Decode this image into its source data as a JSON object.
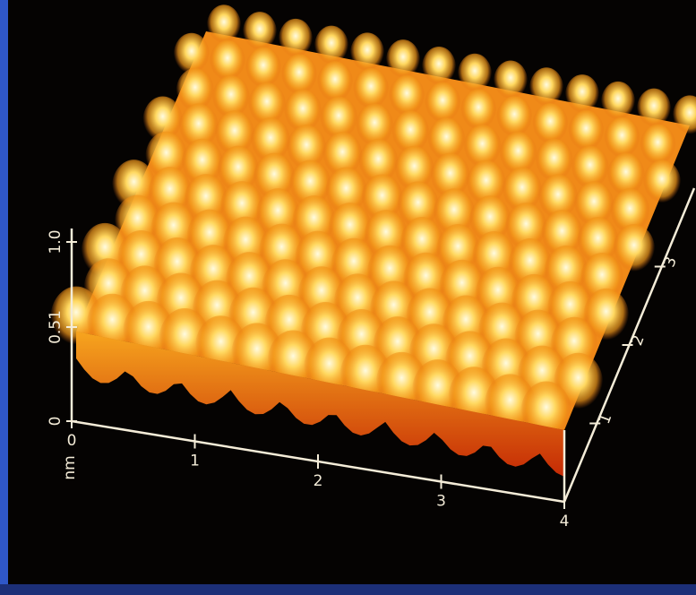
{
  "z_axis": {
    "ticks": [
      "0",
      "0.51",
      "1.0"
    ]
  },
  "x_axis": {
    "unit": "nm",
    "ticks": [
      "0",
      "1",
      "2",
      "3",
      "4"
    ]
  },
  "y_axis": {
    "ticks": [
      "1",
      "2",
      "3"
    ]
  }
}
